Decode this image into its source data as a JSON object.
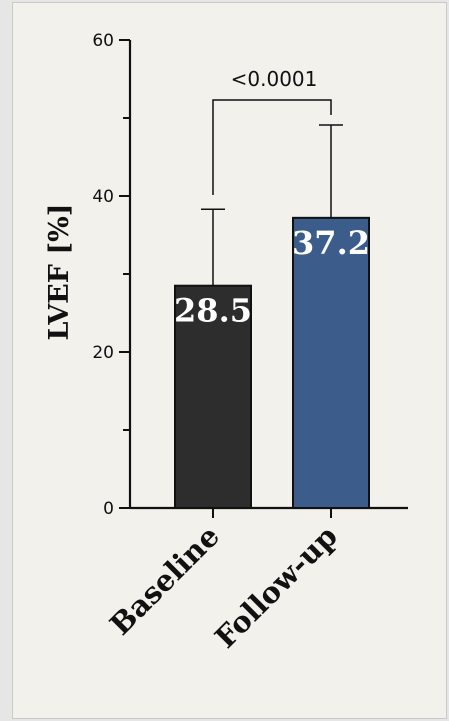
{
  "chart_data": {
    "type": "bar",
    "categories": [
      "Baseline",
      "Follow-up"
    ],
    "values": [
      28.5,
      37.2
    ],
    "errors_upper": [
      38.3,
      49.1
    ],
    "value_labels": [
      "28.5",
      "37.2"
    ],
    "colors": [
      "#2d2d2d",
      "#3c5d8c"
    ],
    "ylabel": "LVEF [%]",
    "xlabel": "",
    "ylim": [
      0,
      60
    ],
    "yticks": [
      0,
      20,
      40,
      60
    ],
    "ytick_labels": [
      "0",
      "20",
      "40",
      "60"
    ],
    "grid": false,
    "significance": {
      "label": "<0.0001",
      "between": [
        0,
        1
      ]
    }
  }
}
